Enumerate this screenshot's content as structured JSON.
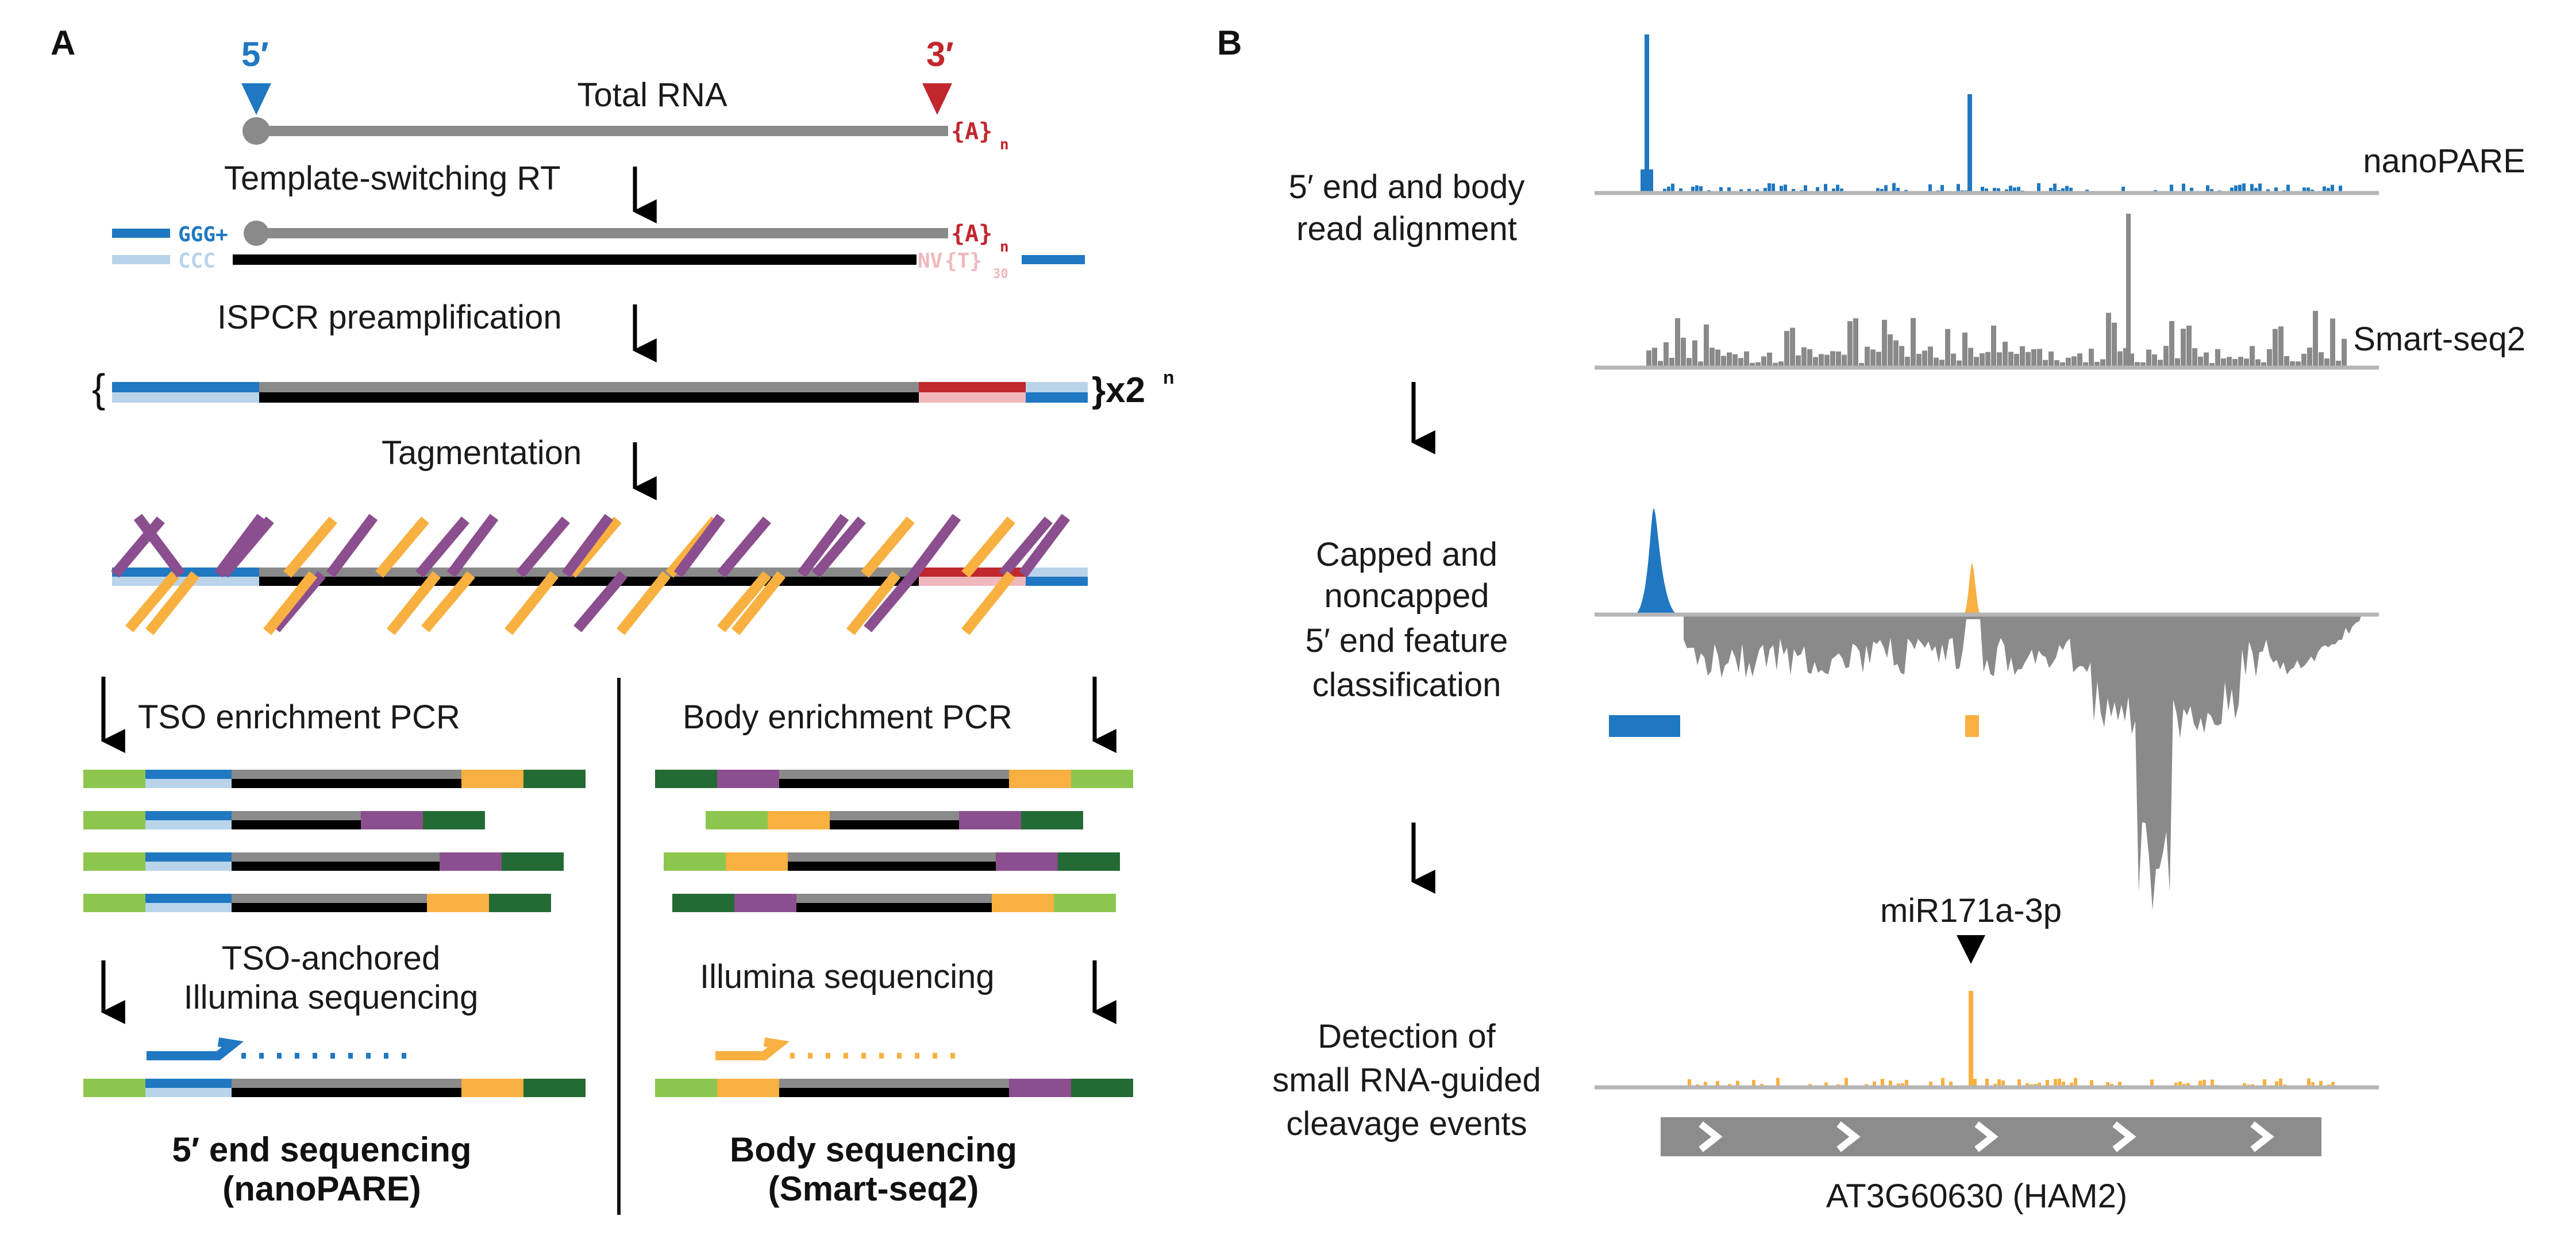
{
  "colors": {
    "blue": "#1f78c1",
    "light_blue": "#b9d4ea",
    "grey": "#8a8a8a",
    "black": "#000000",
    "red": "#c1272d",
    "pink": "#f0b8bd",
    "orange": "#f8b041",
    "purple": "#8b4e8e",
    "light_green": "#8dc64e",
    "dark_green": "#236a34",
    "track_grey": "#8c8c8c"
  },
  "panel_a": {
    "label": "A",
    "five_prime": "5′",
    "three_prime": "3′",
    "total_rna": "Total RNA",
    "poly_a": "{A}",
    "poly_a_sub": "n",
    "ggg": "GGG+",
    "ccc": "CCC",
    "nv": "NV",
    "poly_t": "{T}",
    "poly_t_sub": "30",
    "step_rt": "Template-switching RT",
    "step_ispcr": "ISPCR preamplification",
    "brace_open": "{",
    "amp": "}x2",
    "amp_sup": "n",
    "step_tag": "Tagmentation",
    "tso_pcr": "TSO enrichment PCR",
    "body_pcr": "Body enrichment PCR",
    "tso_seq_1": "TSO-anchored",
    "tso_seq_2": "Illumina sequencing",
    "illumina_seq": "Illumina sequencing",
    "end_seq_1": "5′  end sequencing",
    "end_seq_2": "(nanoPARE)",
    "body_seq_1": "Body sequencing",
    "body_seq_2": "(Smart-seq2)"
  },
  "panel_b": {
    "label": "B",
    "step1_l1": "5′ end and body",
    "step1_l2": "read alignment",
    "track_nanopare": "nanoPARE",
    "track_smartseq": "Smart-seq2",
    "step2_l1": "Capped and",
    "step2_l2": "noncapped",
    "step2_l3": "5′ end feature",
    "step2_l4": "classification",
    "mirna": "miR171a-3p",
    "step3_l1": "Detection of",
    "step3_l2": "small RNA-guided",
    "step3_l3": "cleavage events",
    "gene": "AT3G60630 (HAM2)"
  }
}
